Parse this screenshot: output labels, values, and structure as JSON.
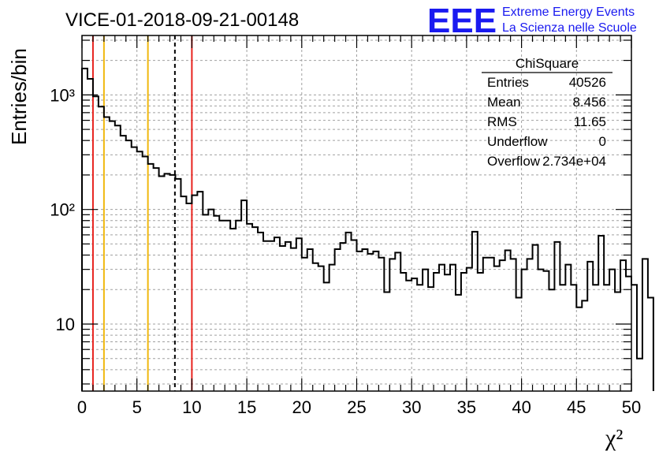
{
  "chart_data": {
    "type": "bar",
    "title": "VICE-01-2018-09-21-00148",
    "xlabel": "χ²",
    "ylabel": "Entries/bin",
    "xlim": [
      0,
      50
    ],
    "ylim": [
      2.6,
      3300
    ],
    "log_y": true,
    "grid": true,
    "x_ticks": [
      "0",
      "5",
      "10",
      "15",
      "20",
      "25",
      "30",
      "35",
      "40",
      "45",
      "50"
    ],
    "y_ticks": [
      "10",
      "10²",
      "10³"
    ],
    "bin_width": 0.5,
    "x_start": 0,
    "values": [
      1700,
      1380,
      970,
      790,
      640,
      590,
      540,
      440,
      400,
      350,
      320,
      290,
      250,
      230,
      195,
      205,
      200,
      185,
      130,
      113,
      133,
      143,
      90,
      100,
      88,
      80,
      80,
      68,
      80,
      120,
      75,
      70,
      63,
      53,
      53,
      57,
      48,
      52,
      46,
      56,
      38,
      45,
      34,
      32,
      23,
      33,
      45,
      51,
      63,
      54,
      43,
      45,
      41,
      43,
      38,
      19,
      37,
      42,
      28,
      24,
      25,
      22,
      30,
      21,
      28,
      33,
      27,
      33,
      18,
      28,
      31,
      64,
      28,
      38,
      38,
      32,
      36,
      44,
      37,
      17,
      30,
      37,
      49,
      30,
      29,
      20,
      52,
      22,
      33,
      22,
      14,
      16,
      35,
      22,
      59,
      22,
      30,
      19,
      36,
      26,
      22,
      5,
      37,
      17
    ],
    "vertical_lines": [
      {
        "x": 1,
        "color": "#e8231e",
        "style": "solid"
      },
      {
        "x": 2,
        "color": "#f0b80e",
        "style": "solid"
      },
      {
        "x": 6,
        "color": "#f0b80e",
        "style": "solid"
      },
      {
        "x": 8.456,
        "color": "#000000",
        "style": "dashed"
      },
      {
        "x": 10,
        "color": "#e8231e",
        "style": "solid"
      }
    ],
    "stats": {
      "name": "ChiSquare",
      "rows": [
        {
          "label": "Entries",
          "value": "40526"
        },
        {
          "label": "Mean",
          "value": "8.456"
        },
        {
          "label": "RMS",
          "value": "11.65"
        },
        {
          "label": "Underflow",
          "value": "0"
        },
        {
          "label": "Overflow",
          "value": "2.734e+04"
        }
      ]
    }
  },
  "logo": {
    "big": "EEE",
    "line1": "Extreme Energy Events",
    "line2": "La Scienza nelle Scuole",
    "color": "#1a1af0"
  }
}
